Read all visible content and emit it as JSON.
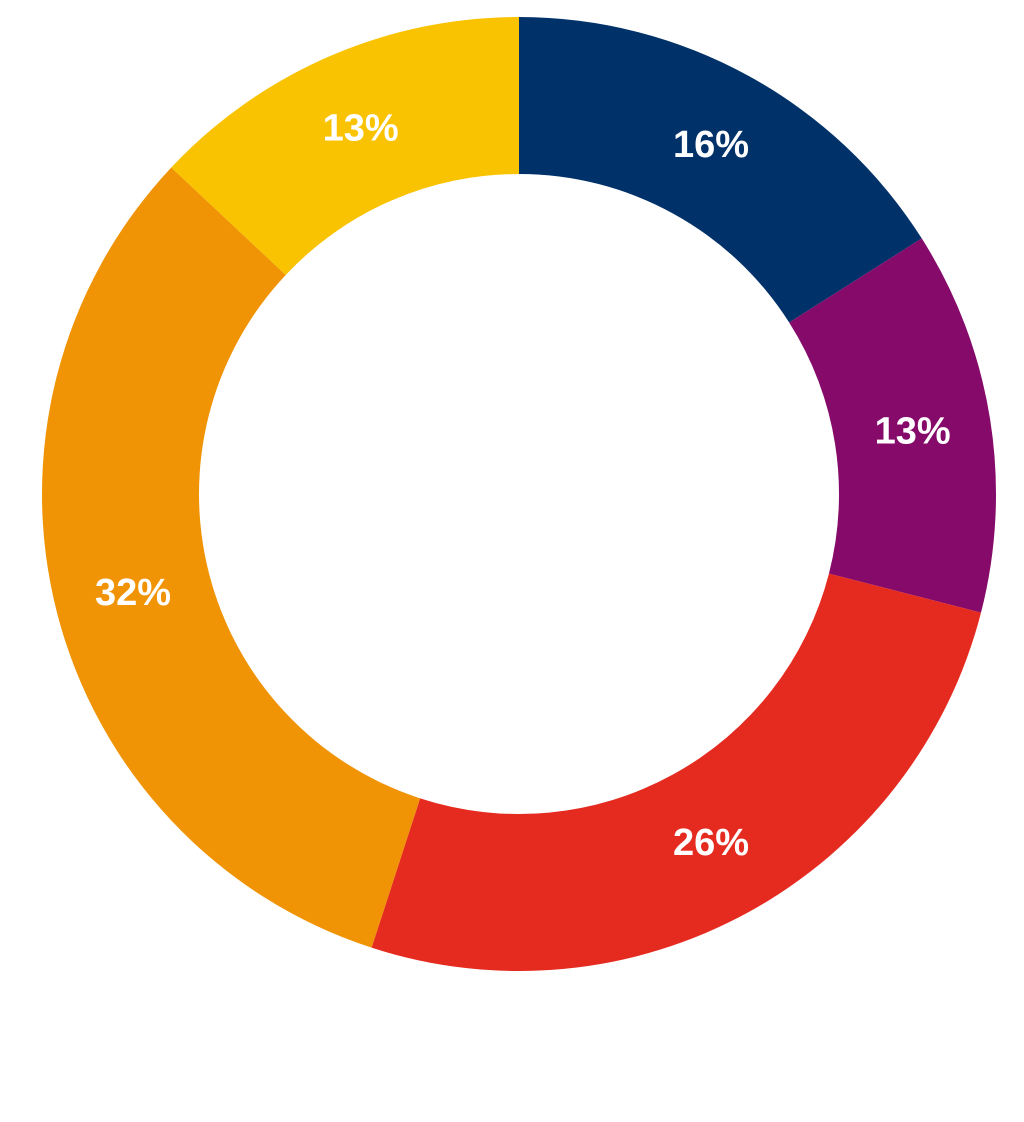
{
  "chart_data": {
    "type": "pie",
    "variant": "donut",
    "start_angle_degrees": 0,
    "direction": "clockwise",
    "slices": [
      {
        "value": 16,
        "label": "16%",
        "color": "#003169"
      },
      {
        "value": 13,
        "label": "13%",
        "color": "#850A6A"
      },
      {
        "value": 26,
        "label": "26%",
        "color": "#E52B20"
      },
      {
        "value": 32,
        "label": "32%",
        "color": "#F09304"
      },
      {
        "value": 13,
        "label": "13%",
        "color": "#F9C301"
      }
    ],
    "legend": "none",
    "title": ""
  }
}
